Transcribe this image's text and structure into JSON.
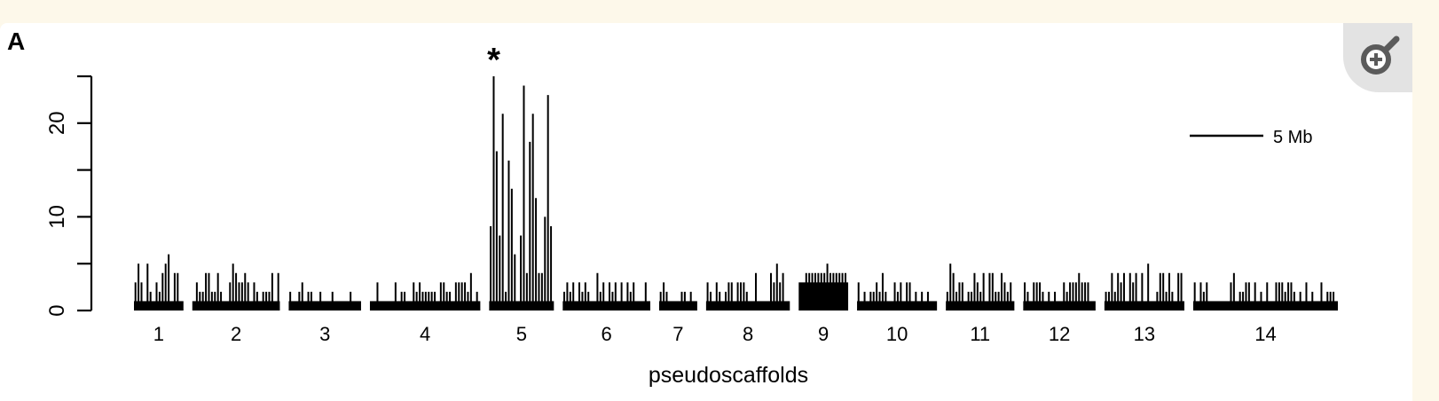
{
  "panel_label": "A",
  "zoom_icon": "zoom-in-icon",
  "chart_data": {
    "type": "bar",
    "title": "",
    "xlabel": "pseudoscaffolds",
    "ylabel": "",
    "ylim": [
      0,
      25
    ],
    "yticks": [
      0,
      10,
      20
    ],
    "grid": false,
    "annotation": "*",
    "scale_bar_label": "5 Mb",
    "categories": [
      "1",
      "2",
      "3",
      "4",
      "5",
      "6",
      "7",
      "8",
      "9",
      "10",
      "11",
      "12",
      "13",
      "14"
    ],
    "lengths_mb": [
      6.5,
      11.5,
      9.5,
      14.5,
      8.5,
      11.5,
      5.0,
      11.0,
      6.5,
      10.5,
      9.0,
      9.5,
      10.5,
      19.0
    ],
    "peaks": [
      6,
      5,
      3,
      4,
      25,
      4,
      3,
      5,
      5,
      4,
      5,
      4,
      5,
      4
    ],
    "baselines": [
      1,
      1,
      1,
      1,
      1,
      1,
      1,
      1,
      3,
      1,
      1,
      1,
      1,
      1
    ]
  }
}
